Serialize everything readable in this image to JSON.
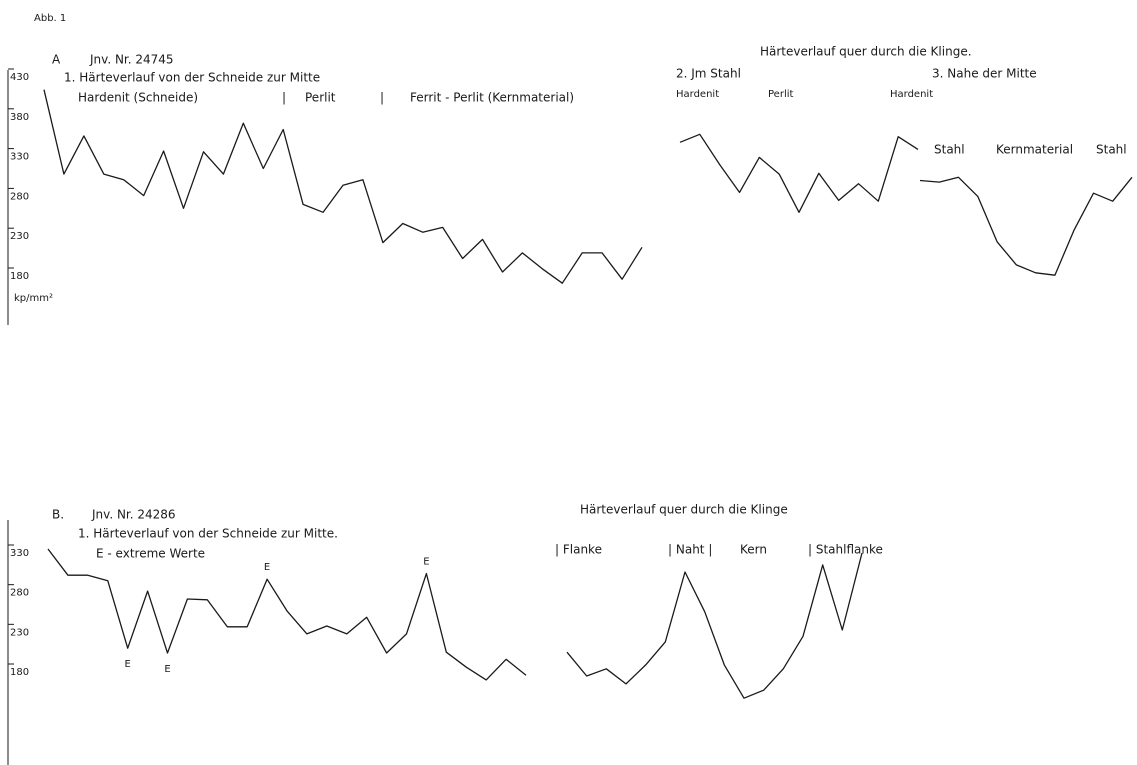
{
  "figure_label": "Abb. 1",
  "chart_data": [
    {
      "type": "line",
      "panel": "A",
      "id_text": "Jnv. Nr. 24745",
      "title": "1. Härteverlauf von der Schneide zur Mitte",
      "zones": [
        "Hardenit (Schneide)",
        "|",
        "Perlit",
        "|",
        "Ferrit - Perlit (Kernmaterial)"
      ],
      "y_label": "kp/mm²",
      "ylim": [
        180,
        430
      ],
      "yticks": [
        430,
        380,
        330,
        280,
        230,
        180
      ],
      "series": [
        {
          "color": "#1a1a1a",
          "values": [
            414,
            308,
            356,
            308,
            301,
            281,
            337,
            265,
            336,
            308,
            372,
            315,
            364,
            270,
            260,
            294,
            301,
            222,
            246,
            235,
            241,
            202,
            226,
            185,
            209,
            189,
            171,
            209,
            209,
            176,
            216
          ]
        }
      ]
    },
    {
      "type": "line",
      "title": "Härteverlauf quer durch die Klinge.",
      "subtitle": "2. Jm Stahl",
      "zones": [
        "Hardenit",
        "Perlit",
        "Hardenit"
      ],
      "ylim": [
        180,
        430
      ],
      "series": [
        {
          "color": "#1a1a1a",
          "values": [
            348,
            358,
            320,
            285,
            329,
            308,
            260,
            309,
            275,
            296,
            274,
            355,
            339
          ]
        }
      ]
    },
    {
      "type": "line",
      "subtitle": "3. Nahe der Mitte",
      "zones": [
        "Stahl",
        "Kernmaterial",
        "Stahl"
      ],
      "ylim": [
        180,
        430
      ],
      "series": [
        {
          "color": "#1a1a1a",
          "values": [
            300,
            298,
            304,
            280,
            223,
            194,
            184,
            181,
            238,
            284,
            274,
            304
          ]
        }
      ]
    },
    {
      "type": "line",
      "panel": "B.",
      "id_text": "Jnv. Nr. 24286",
      "title": "1. Härteverlauf von der Schneide zur Mitte.",
      "note": "E - extreme Werte",
      "ylim": [
        180,
        330
      ],
      "yticks": [
        330,
        280,
        230,
        180
      ],
      "annotations": [
        {
          "text": "E",
          "index": 4
        },
        {
          "text": "E",
          "index": 6
        },
        {
          "text": "E",
          "index": 11
        },
        {
          "text": "E",
          "index": 19
        }
      ],
      "series": [
        {
          "color": "#1a1a1a",
          "values": [
            335,
            302,
            302,
            295,
            210,
            282,
            204,
            272,
            271,
            237,
            237,
            297,
            257,
            228,
            238,
            228,
            249,
            204,
            228,
            304,
            205,
            186,
            170,
            196,
            176
          ]
        }
      ]
    },
    {
      "type": "line",
      "title": "Härteverlauf quer durch die Klinge",
      "zones": [
        "| Flanke",
        "| Naht |",
        "Kern",
        "| Stahlflanke"
      ],
      "ylim": [
        180,
        330
      ],
      "series": [
        {
          "color": "#1a1a1a",
          "values": [
            205,
            175,
            184,
            165,
            189,
            218,
            306,
            256,
            189,
            147,
            157,
            184,
            225,
            315,
            233,
            330
          ]
        }
      ]
    }
  ]
}
